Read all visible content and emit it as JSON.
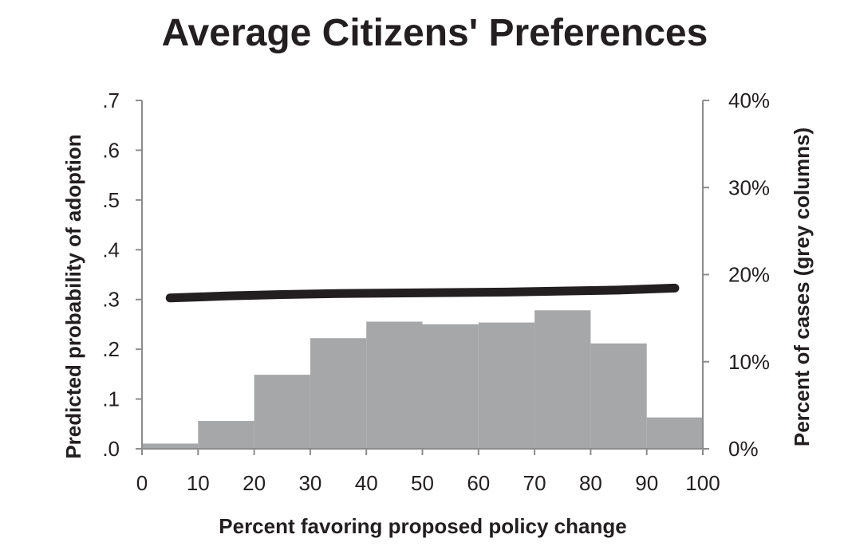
{
  "chart_data": {
    "type": "bar",
    "title": "Average Citizens' Preferences",
    "xlabel": "Percent favoring proposed policy change",
    "ylabel": "Predicted probability of adoption",
    "y2label": "Percent of cases (grey columns)",
    "xlim": [
      0,
      100
    ],
    "ylim": [
      0,
      0.7
    ],
    "y2lim": [
      0,
      40
    ],
    "xticks": [
      "0",
      "10",
      "20",
      "30",
      "40",
      "50",
      "60",
      "70",
      "80",
      "90",
      "100"
    ],
    "yticks": [
      ".0",
      ".1",
      ".2",
      ".3",
      ".4",
      ".5",
      ".6",
      ".7"
    ],
    "y2ticks": [
      "0%",
      "10%",
      "20%",
      "30%",
      "40%"
    ],
    "bins": [
      [
        0,
        10
      ],
      [
        10,
        20
      ],
      [
        20,
        30
      ],
      [
        30,
        40
      ],
      [
        40,
        50
      ],
      [
        50,
        60
      ],
      [
        60,
        70
      ],
      [
        70,
        80
      ],
      [
        80,
        90
      ],
      [
        90,
        100
      ]
    ],
    "bar_values_percent": [
      0.6,
      3.2,
      8.5,
      12.7,
      14.6,
      14.3,
      14.5,
      15.9,
      12.1,
      3.6
    ],
    "bar_color": "#a6a7a9",
    "line": {
      "x": [
        5,
        15,
        25,
        35,
        45,
        55,
        65,
        75,
        85,
        95
      ],
      "y": [
        0.303,
        0.307,
        0.31,
        0.312,
        0.313,
        0.314,
        0.315,
        0.317,
        0.319,
        0.323
      ],
      "color": "#231f20"
    }
  }
}
